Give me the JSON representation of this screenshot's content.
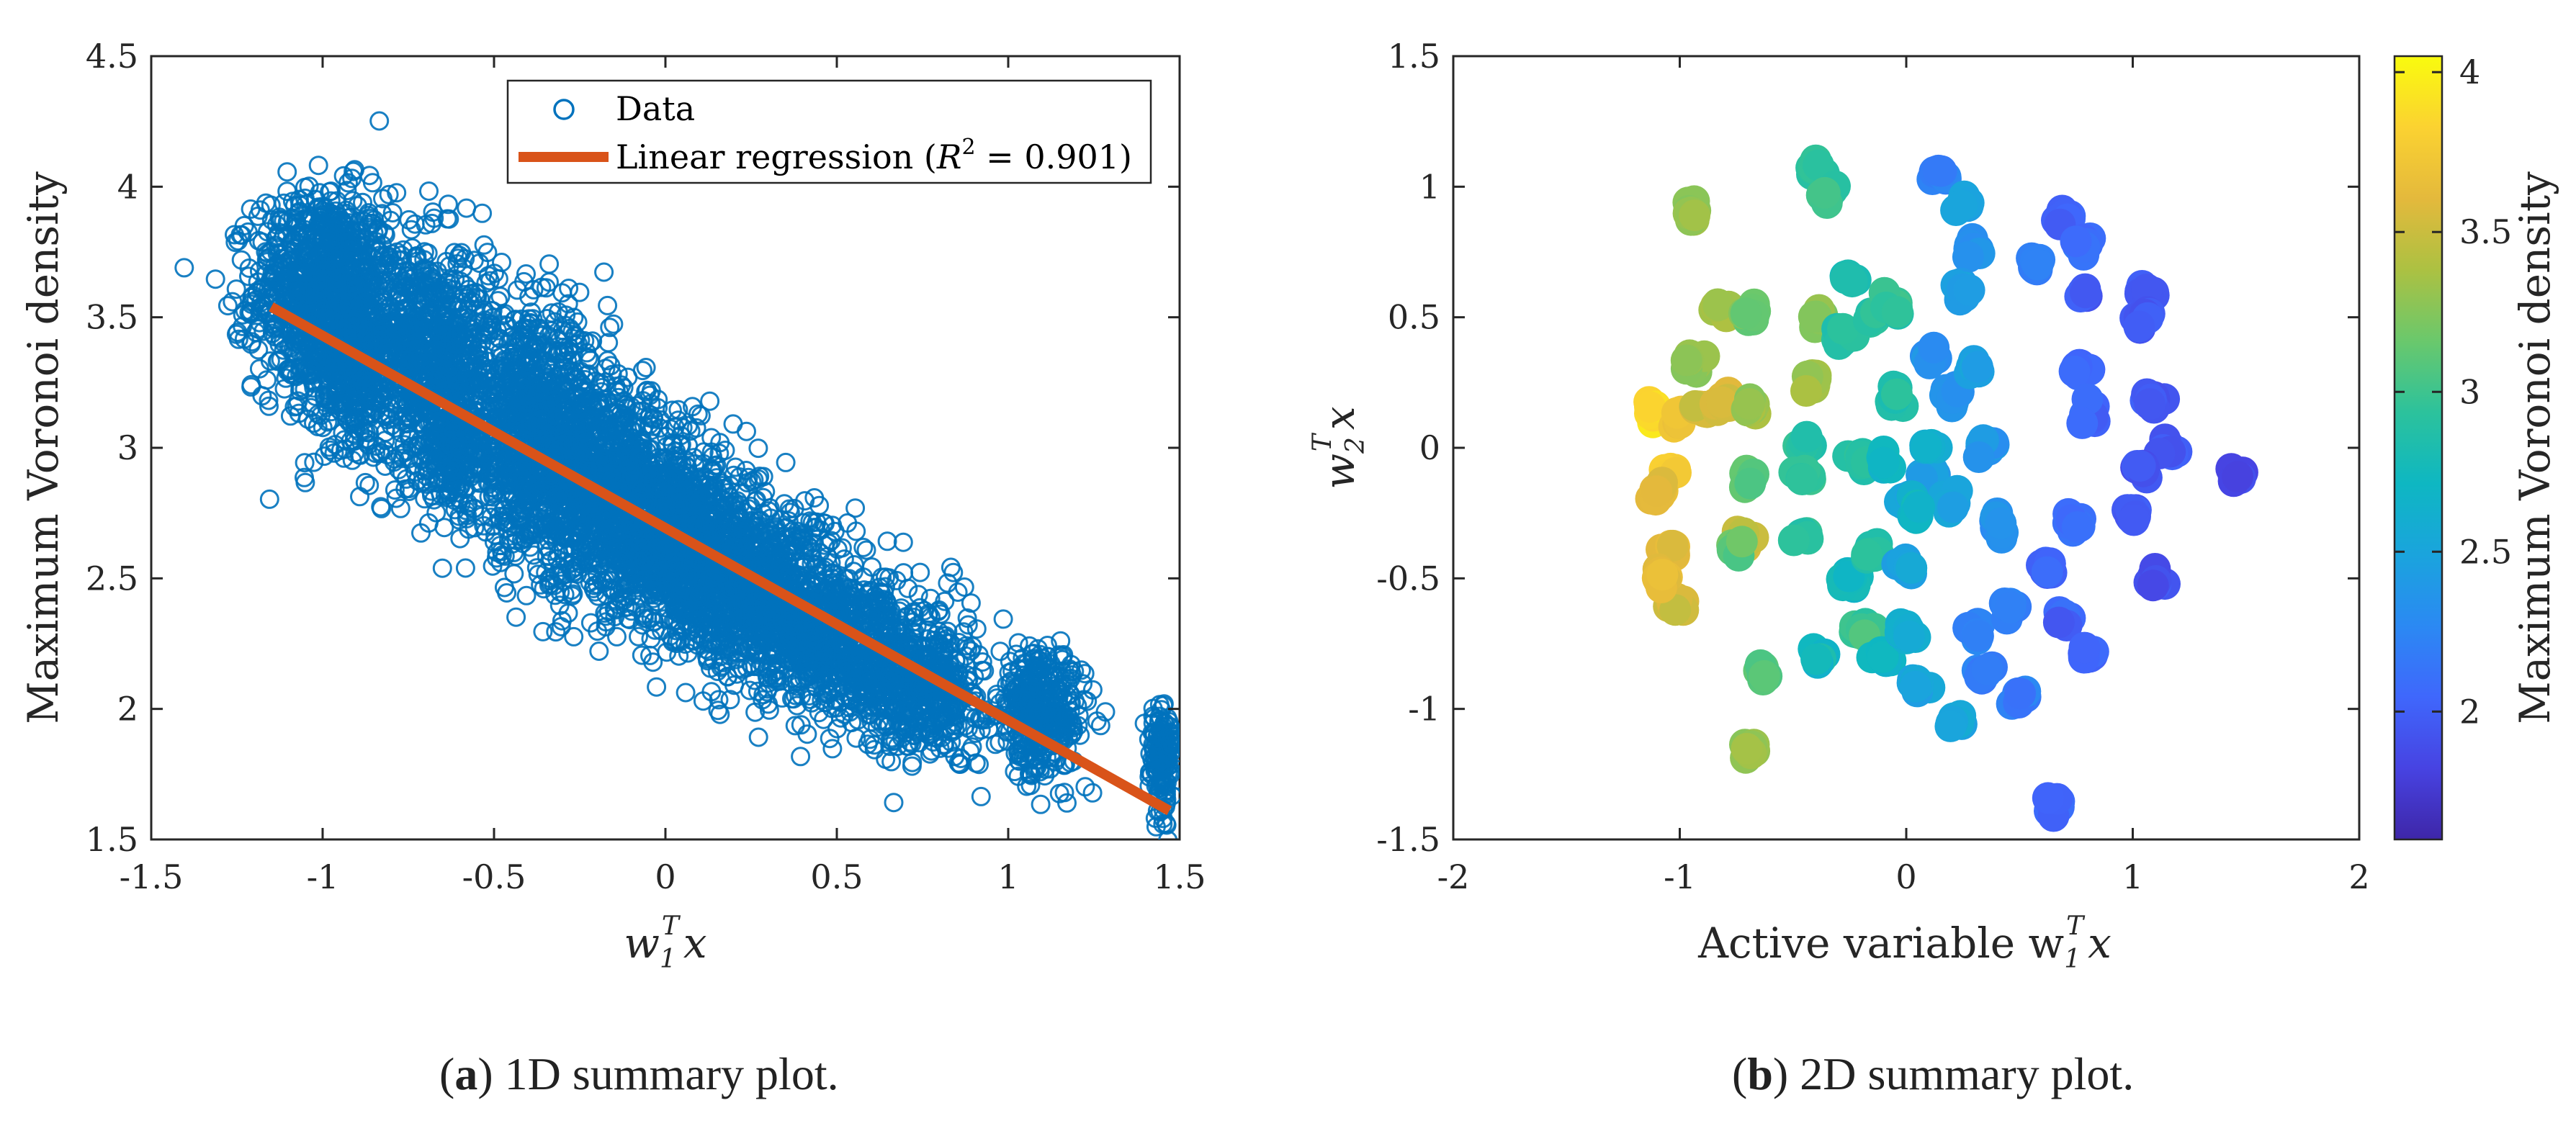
{
  "chart_data": [
    {
      "type": "scatter",
      "panel_letter": "a",
      "caption": "1D summary plot.",
      "xlabel_base": "w",
      "xlabel_sub": "1",
      "xlabel_sup": "T",
      "xlabel_tail": "x",
      "ylabel": "Maximum Voronoi density",
      "xlim": [
        -1.5,
        1.5
      ],
      "ylim": [
        1.5,
        4.5
      ],
      "xticks": [
        -1.5,
        -1,
        -0.5,
        0,
        0.5,
        1,
        1.5
      ],
      "xtick_labels": [
        "-1.5",
        "-1",
        "-0.5",
        "0",
        "0.5",
        "1",
        "1.5"
      ],
      "yticks": [
        1.5,
        2,
        2.5,
        3,
        3.5,
        4,
        4.5
      ],
      "ytick_labels": [
        "1.5",
        "2",
        "2.5",
        "3",
        "3.5",
        "4",
        "4.5"
      ],
      "marker_color": "#0072BD",
      "fit_color": "#D95319",
      "legend": {
        "position": "top-right",
        "data_label": "Data",
        "fit_label_prefix": "Linear regression (",
        "fit_r2_base": "R",
        "fit_r2_sup": "2",
        "fit_r2_value": " = 0.901",
        "fit_label_suffix": ")"
      },
      "fit_line": {
        "x": [
          -1.15,
          1.47
        ],
        "y": [
          3.54,
          1.61
        ]
      },
      "clusters": [
        {
          "x": -1.0,
          "y": 3.6,
          "sx": 0.1,
          "sy": 0.19,
          "n": 1000
        },
        {
          "x": -0.93,
          "y": 3.3,
          "sx": 0.06,
          "sy": 0.15,
          "n": 250
        },
        {
          "x": -0.7,
          "y": 3.35,
          "sx": 0.11,
          "sy": 0.22,
          "n": 900
        },
        {
          "x": -0.62,
          "y": 3.0,
          "sx": 0.04,
          "sy": 0.12,
          "n": 200
        },
        {
          "x": -0.38,
          "y": 3.05,
          "sx": 0.11,
          "sy": 0.22,
          "n": 1000
        },
        {
          "x": -0.15,
          "y": 2.82,
          "sx": 0.12,
          "sy": 0.19,
          "n": 1000
        },
        {
          "x": 0.05,
          "y": 2.65,
          "sx": 0.11,
          "sy": 0.16,
          "n": 900
        },
        {
          "x": 0.25,
          "y": 2.45,
          "sx": 0.13,
          "sy": 0.15,
          "n": 900
        },
        {
          "x": 0.5,
          "y": 2.25,
          "sx": 0.12,
          "sy": 0.14,
          "n": 700
        },
        {
          "x": 0.75,
          "y": 2.1,
          "sx": 0.09,
          "sy": 0.14,
          "n": 500
        },
        {
          "x": 1.1,
          "y": 1.98,
          "sx": 0.06,
          "sy": 0.12,
          "n": 400
        },
        {
          "x": 1.45,
          "y": 1.82,
          "sx": 0.02,
          "sy": 0.11,
          "n": 150
        }
      ]
    },
    {
      "type": "scatter",
      "panel_letter": "b",
      "caption": "2D summary plot.",
      "xlabel_base": "Active variable w",
      "xlabel_sub": "1",
      "xlabel_sup": "T",
      "xlabel_tail": "x",
      "ylabel_base": "w",
      "ylabel_sub": "2",
      "ylabel_sup": "T",
      "ylabel_tail": "x",
      "xlim": [
        -2,
        2
      ],
      "ylim": [
        -1.5,
        1.5
      ],
      "xticks": [
        -2,
        -1,
        0,
        1,
        2
      ],
      "xtick_labels": [
        "-2",
        "-1",
        "0",
        "1",
        "2"
      ],
      "yticks": [
        -1.5,
        -1,
        -0.5,
        0,
        0.5,
        1,
        1.5
      ],
      "ytick_labels": [
        "-1.5",
        "-1",
        "-0.5",
        "0",
        "0.5",
        "1",
        "1.5"
      ],
      "colorbar": {
        "label": "Maximum Voronoi density",
        "range": [
          1.6,
          4.05
        ],
        "ticks": [
          2,
          2.5,
          3,
          3.5,
          4
        ],
        "tick_labels": [
          "2",
          "2.5",
          "3",
          "3.5",
          "4"
        ],
        "colormap": [
          "#3E26A8",
          "#4743E2",
          "#3F67FC",
          "#2B89F3",
          "#1AA4DD",
          "#0EB7C2",
          "#2CC29C",
          "#6AC86C",
          "#ACC142",
          "#E4B93C",
          "#FBD231",
          "#F9FB0E"
        ]
      },
      "clusters": [
        {
          "x": -1.12,
          "y": 0.13,
          "v": 3.9
        },
        {
          "x": -1.0,
          "y": 0.11,
          "v": 3.72
        },
        {
          "x": -1.05,
          "y": -0.1,
          "v": 3.75
        },
        {
          "x": -1.1,
          "y": -0.17,
          "v": 3.62
        },
        {
          "x": -1.05,
          "y": -0.4,
          "v": 3.6
        },
        {
          "x": -1.02,
          "y": -0.6,
          "v": 3.55
        },
        {
          "x": -1.08,
          "y": -0.5,
          "v": 3.62
        },
        {
          "x": -0.9,
          "y": 0.15,
          "v": 3.55
        },
        {
          "x": -0.8,
          "y": 0.17,
          "v": 3.55
        },
        {
          "x": -0.7,
          "y": 0.15,
          "v": 3.3
        },
        {
          "x": -0.72,
          "y": -0.35,
          "v": 3.5
        },
        {
          "x": -0.75,
          "y": -0.38,
          "v": 3.15
        },
        {
          "x": -0.95,
          "y": 0.9,
          "v": 3.28
        },
        {
          "x": -0.82,
          "y": 0.55,
          "v": 3.35
        },
        {
          "x": -0.68,
          "y": 0.52,
          "v": 3.15
        },
        {
          "x": -0.95,
          "y": 0.32,
          "v": 3.3
        },
        {
          "x": -0.7,
          "y": -0.12,
          "v": 3.1
        },
        {
          "x": -0.63,
          "y": -0.87,
          "v": 3.05
        },
        {
          "x": -0.7,
          "y": -1.15,
          "v": 3.3
        },
        {
          "x": -0.4,
          "y": 1.07,
          "v": 2.95
        },
        {
          "x": -0.35,
          "y": 0.97,
          "v": 2.95
        },
        {
          "x": -0.4,
          "y": 0.5,
          "v": 3.25
        },
        {
          "x": -0.3,
          "y": 0.42,
          "v": 2.92
        },
        {
          "x": -0.42,
          "y": 0.25,
          "v": 3.35
        },
        {
          "x": -0.45,
          "y": 0.01,
          "v": 2.9
        },
        {
          "x": -0.45,
          "y": -0.1,
          "v": 2.95
        },
        {
          "x": -0.45,
          "y": -0.35,
          "v": 2.9
        },
        {
          "x": -0.4,
          "y": -0.8,
          "v": 2.75
        },
        {
          "x": -0.25,
          "y": 0.65,
          "v": 2.8
        },
        {
          "x": -0.15,
          "y": 0.5,
          "v": 2.92
        },
        {
          "x": -0.05,
          "y": 0.55,
          "v": 2.95
        },
        {
          "x": -0.2,
          "y": -0.05,
          "v": 2.9
        },
        {
          "x": -0.1,
          "y": -0.05,
          "v": 2.7
        },
        {
          "x": -0.25,
          "y": -0.5,
          "v": 2.72
        },
        {
          "x": -0.15,
          "y": -0.4,
          "v": 2.9
        },
        {
          "x": -0.2,
          "y": -0.7,
          "v": 3.0
        },
        {
          "x": -0.1,
          "y": -0.8,
          "v": 2.72
        },
        {
          "x": 0.0,
          "y": -0.45,
          "v": 2.5
        },
        {
          "x": 0.0,
          "y": -0.7,
          "v": 2.6
        },
        {
          "x": 0.05,
          "y": -0.9,
          "v": 2.5
        },
        {
          "x": 0.15,
          "y": 1.05,
          "v": 2.2
        },
        {
          "x": 0.25,
          "y": 0.95,
          "v": 2.45
        },
        {
          "x": 0.3,
          "y": 0.75,
          "v": 2.3
        },
        {
          "x": 0.25,
          "y": 0.6,
          "v": 2.45
        },
        {
          "x": 0.1,
          "y": 0.35,
          "v": 2.35
        },
        {
          "x": 0.2,
          "y": 0.2,
          "v": 2.3
        },
        {
          "x": 0.3,
          "y": 0.3,
          "v": 2.5
        },
        {
          "x": 0.35,
          "y": 0.0,
          "v": 2.4
        },
        {
          "x": 0.1,
          "y": -0.1,
          "v": 2.45
        },
        {
          "x": 0.2,
          "y": -0.2,
          "v": 2.5
        },
        {
          "x": 0.4,
          "y": -0.3,
          "v": 2.35
        },
        {
          "x": 0.35,
          "y": -0.85,
          "v": 2.2
        },
        {
          "x": 0.22,
          "y": -1.05,
          "v": 2.5
        },
        {
          "x": 0.3,
          "y": -0.7,
          "v": 2.25
        },
        {
          "x": 0.45,
          "y": -0.6,
          "v": 2.2
        },
        {
          "x": 0.5,
          "y": -0.95,
          "v": 2.2
        },
        {
          "x": 0.58,
          "y": 0.7,
          "v": 2.2
        },
        {
          "x": 0.7,
          "y": 0.88,
          "v": 2.05
        },
        {
          "x": 0.78,
          "y": 0.78,
          "v": 2.1
        },
        {
          "x": 0.78,
          "y": 0.6,
          "v": 2.0
        },
        {
          "x": 0.78,
          "y": 0.3,
          "v": 2.05
        },
        {
          "x": 0.8,
          "y": 0.13,
          "v": 2.05
        },
        {
          "x": 0.62,
          "y": -0.45,
          "v": 2.05
        },
        {
          "x": 0.75,
          "y": -0.3,
          "v": 2.1
        },
        {
          "x": 0.7,
          "y": -0.65,
          "v": 2.0
        },
        {
          "x": 0.8,
          "y": -0.8,
          "v": 2.0
        },
        {
          "x": 0.65,
          "y": -1.37,
          "v": 2.05
        },
        {
          "x": 1.05,
          "y": 0.6,
          "v": 1.95
        },
        {
          "x": 1.05,
          "y": 0.5,
          "v": 1.95
        },
        {
          "x": 1.08,
          "y": 0.18,
          "v": 1.95
        },
        {
          "x": 1.15,
          "y": 0.0,
          "v": 1.95
        },
        {
          "x": 1.05,
          "y": -0.08,
          "v": 1.9
        },
        {
          "x": 1.0,
          "y": -0.25,
          "v": 1.95
        },
        {
          "x": 1.1,
          "y": -0.5,
          "v": 1.9
        },
        {
          "x": 1.45,
          "y": -0.1,
          "v": 1.85
        },
        {
          "x": 0.0,
          "y": -0.2,
          "v": 2.55
        },
        {
          "x": 0.1,
          "y": 0.0,
          "v": 2.6
        },
        {
          "x": -0.05,
          "y": 0.2,
          "v": 2.85
        },
        {
          "x": 0.05,
          "y": -0.25,
          "v": 2.7
        }
      ]
    }
  ]
}
